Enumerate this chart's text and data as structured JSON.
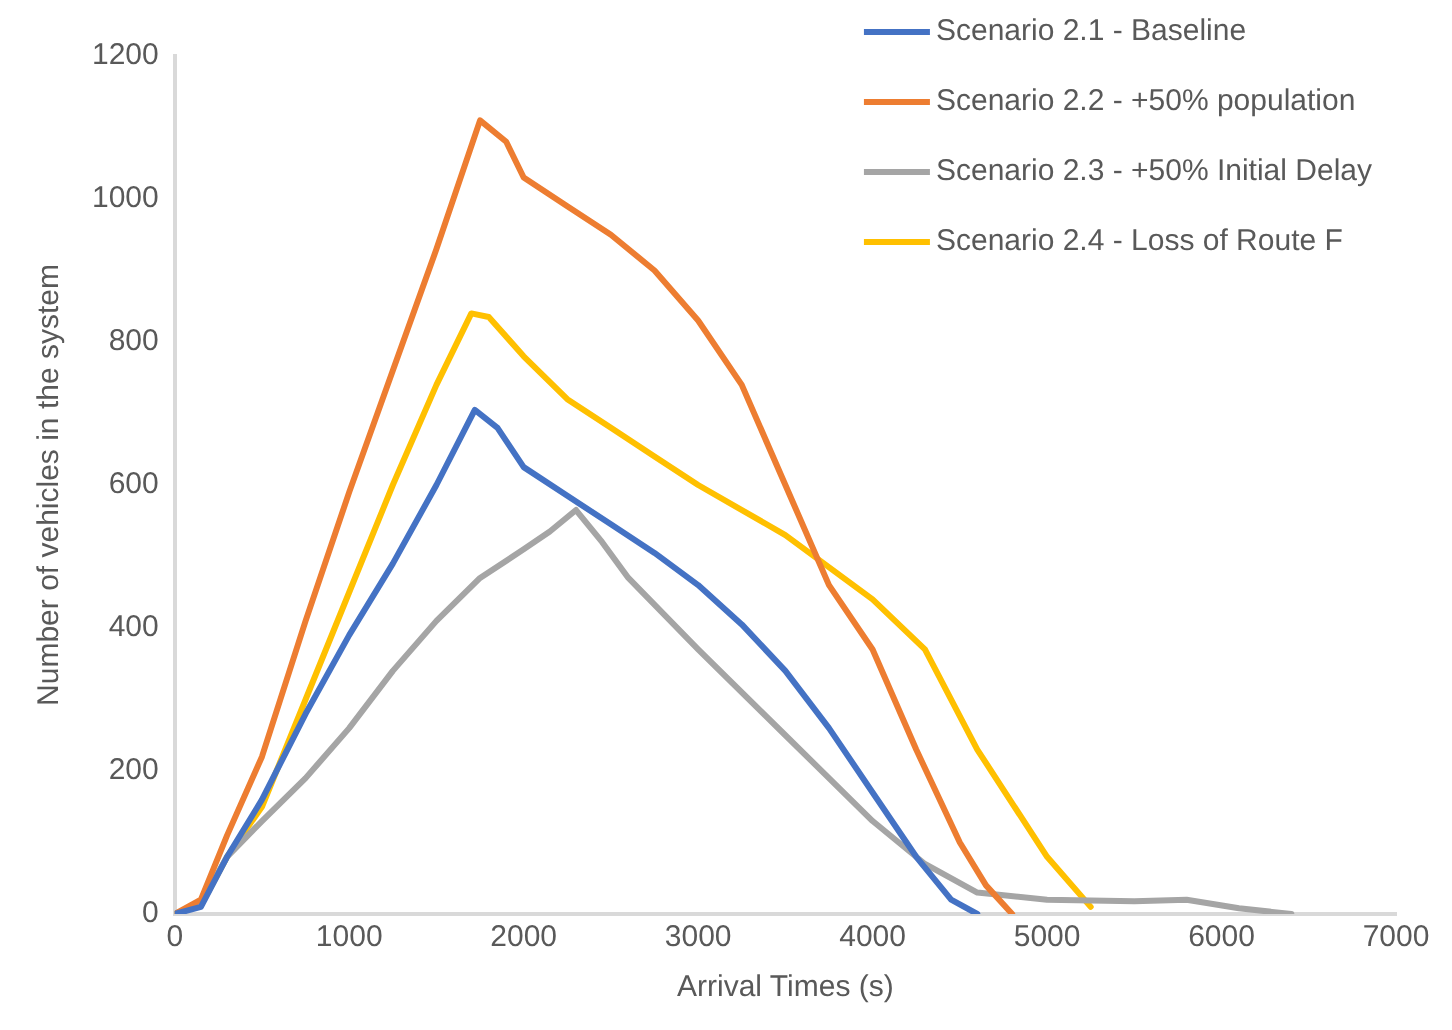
{
  "chart_data": {
    "type": "line",
    "xlabel": "Arrival Times (s)",
    "ylabel": "Number of vehicles in the system",
    "xlim": [
      0,
      7000
    ],
    "xticks": [
      0,
      1000,
      2000,
      3000,
      4000,
      5000,
      6000,
      7000
    ],
    "ylim": [
      0,
      1200
    ],
    "yticks": [
      0,
      200,
      400,
      600,
      800,
      1000,
      1200
    ],
    "grid": false,
    "legend": "top right",
    "marker": "none",
    "line_style": "solid",
    "series": [
      {
        "name": "Scenario 2.1 - Baseline",
        "color": "#4472c4",
        "x": [
          0,
          150,
          300,
          500,
          750,
          1000,
          1250,
          1500,
          1720,
          1850,
          2000,
          2250,
          2500,
          2750,
          3000,
          3250,
          3500,
          3750,
          4000,
          4250,
          4450,
          4600
        ],
        "values": [
          0,
          10,
          80,
          160,
          280,
          390,
          490,
          600,
          705,
          680,
          625,
          585,
          545,
          505,
          460,
          405,
          340,
          260,
          170,
          80,
          20,
          0
        ]
      },
      {
        "name": "Scenario 2.2 - +50% population",
        "color": "#ed7d31",
        "x": [
          0,
          150,
          300,
          500,
          750,
          1000,
          1250,
          1500,
          1750,
          1900,
          2000,
          2250,
          2500,
          2750,
          3000,
          3250,
          3500,
          3750,
          4000,
          4250,
          4500,
          4650,
          4800
        ],
        "values": [
          0,
          20,
          110,
          220,
          410,
          590,
          760,
          930,
          1110,
          1080,
          1030,
          990,
          950,
          900,
          830,
          740,
          600,
          460,
          370,
          230,
          100,
          40,
          0
        ]
      },
      {
        "name": "Scenario 2.3 - +50% Initial Delay",
        "color": "#a5a5a5",
        "x": [
          0,
          150,
          300,
          500,
          750,
          1000,
          1250,
          1500,
          1750,
          2000,
          2150,
          2300,
          2450,
          2600,
          3000,
          3500,
          4000,
          4300,
          4600,
          5000,
          5500,
          5800,
          6100,
          6400
        ],
        "values": [
          0,
          15,
          80,
          130,
          190,
          260,
          340,
          410,
          470,
          510,
          535,
          565,
          520,
          470,
          370,
          250,
          130,
          70,
          30,
          20,
          18,
          20,
          8,
          0
        ]
      },
      {
        "name": "Scenario 2.4 - Loss of Route F",
        "color": "#ffc000",
        "x": [
          0,
          150,
          300,
          500,
          750,
          1000,
          1250,
          1500,
          1700,
          1800,
          2000,
          2250,
          2500,
          2750,
          3000,
          3500,
          4000,
          4300,
          4600,
          5000,
          5250
        ],
        "values": [
          0,
          12,
          80,
          150,
          300,
          450,
          600,
          740,
          840,
          835,
          780,
          720,
          680,
          640,
          600,
          530,
          440,
          370,
          230,
          80,
          10
        ]
      }
    ]
  }
}
